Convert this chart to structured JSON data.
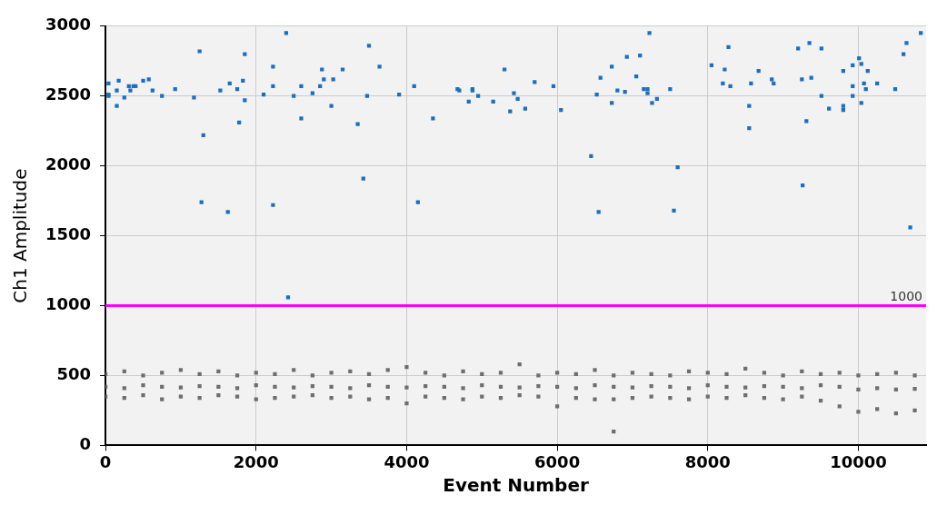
{
  "chart_data": {
    "type": "scatter",
    "xlabel": "Event Number",
    "ylabel": "Ch1 Amplitude",
    "xlim": [
      0,
      10900
    ],
    "xticks": [
      0,
      2000,
      4000,
      6000,
      8000,
      10000
    ],
    "ylim": [
      0,
      3000
    ],
    "yticks": [
      0,
      500,
      1000,
      1500,
      2000,
      2500,
      3000
    ],
    "grid": true,
    "legend": false,
    "marker": "square",
    "ref_lines": [
      {
        "axis": "y",
        "value": 1000,
        "label": "1000",
        "color": "#ff00ff"
      }
    ],
    "series": [
      {
        "color": "#1a6fc0",
        "x": [
          40,
          175,
          40,
          40,
          150,
          150,
          250,
          310,
          330,
          370,
          400,
          500,
          575,
          625,
          750,
          925,
          1175,
          1250,
          1300,
          1275,
          1525,
          1650,
          1750,
          1825,
          1850,
          1850,
          1775,
          1625,
          2225,
          2225,
          2225,
          2100,
          2400,
          2425,
          2500,
          2600,
          2600,
          2750,
          2850,
          2875,
          2900,
          3025,
          3000,
          3150,
          3350,
          3425,
          3475,
          3500,
          3640,
          3900,
          4100,
          4350,
          4150,
          4675,
          4700,
          4825,
          4875,
          4875,
          4950,
          5150,
          5300,
          5375,
          5425,
          5475,
          5575,
          5700,
          5950,
          6050,
          6450,
          6550,
          6525,
          6575,
          6725,
          6725,
          6800,
          6900,
          6925,
          7100,
          7050,
          7150,
          7200,
          7200,
          7225,
          7260,
          7325,
          7500,
          7600,
          7550,
          8050,
          8275,
          8225,
          8200,
          8300,
          8550,
          8550,
          8575,
          8675,
          8850,
          8875,
          9200,
          9350,
          9510,
          9250,
          9375,
          9310,
          9260,
          9510,
          9610,
          9800,
          9800,
          9800,
          9925,
          9925,
          9925,
          10010,
          10040,
          10125,
          10075,
          10100,
          10040,
          10250,
          10490,
          10640,
          10600,
          10830,
          10690
        ],
        "values": [
          2590,
          2610,
          2510,
          2500,
          2540,
          2430,
          2490,
          2570,
          2540,
          2570,
          2570,
          2610,
          2620,
          2540,
          2500,
          2550,
          2490,
          2820,
          2220,
          1740,
          2540,
          2590,
          2550,
          2610,
          2800,
          2470,
          2310,
          1670,
          1720,
          2710,
          2570,
          2510,
          2950,
          1060,
          2500,
          2570,
          2340,
          2520,
          2570,
          2690,
          2620,
          2620,
          2430,
          2690,
          2300,
          1910,
          2500,
          2860,
          2710,
          2510,
          2570,
          2340,
          1740,
          2550,
          2540,
          2460,
          2550,
          2540,
          2500,
          2460,
          2690,
          2390,
          2520,
          2480,
          2410,
          2600,
          2570,
          2400,
          2070,
          1670,
          2510,
          2630,
          2710,
          2450,
          2540,
          2530,
          2780,
          2790,
          2640,
          2550,
          2550,
          2520,
          2950,
          2450,
          2480,
          2550,
          1990,
          1680,
          2720,
          2850,
          2690,
          2590,
          2570,
          2430,
          2270,
          2590,
          2680,
          2620,
          2590,
          2840,
          2880,
          2840,
          2620,
          2630,
          2320,
          1860,
          2500,
          2410,
          2680,
          2430,
          2400,
          2720,
          2570,
          2500,
          2770,
          2730,
          2680,
          2590,
          2550,
          2450,
          2590,
          2550,
          2880,
          2800,
          2950,
          1560
        ]
      },
      {
        "color": "#6e6e6e",
        "x": [
          0,
          250,
          500,
          750,
          1000,
          1250,
          1500,
          1750,
          2000,
          2250,
          2500,
          2750,
          3000,
          3250,
          3500,
          3750,
          4000,
          4250,
          4500,
          4750,
          5000,
          5250,
          5500,
          5750,
          6000,
          6250,
          6500,
          6750,
          7000,
          7250,
          7500,
          7750,
          8000,
          8250,
          8500,
          8750,
          9000,
          9250,
          9500,
          9750,
          10000,
          10250,
          10500,
          10750,
          0,
          250,
          500,
          750,
          1000,
          1250,
          1500,
          1750,
          2000,
          2250,
          2500,
          2750,
          3000,
          3250,
          3500,
          3750,
          4000,
          4250,
          4500,
          4750,
          5000,
          5250,
          5500,
          5750,
          6000,
          6250,
          6500,
          6750,
          7000,
          7250,
          7500,
          7750,
          8000,
          8250,
          8500,
          8750,
          9000,
          9250,
          9500,
          9750,
          10000,
          10250,
          10500,
          10750,
          0,
          250,
          500,
          750,
          1000,
          1250,
          1500,
          1750,
          2000,
          2250,
          2500,
          2750,
          3000,
          3250,
          3500,
          3750,
          4000,
          4250,
          4500,
          4750,
          5000,
          5250,
          5500,
          5750,
          6000,
          6250,
          6500,
          6750,
          7000,
          7250,
          7500,
          7750,
          8000,
          8250,
          8500,
          8750,
          9000,
          9250,
          9500,
          9750,
          10000,
          10250,
          10500,
          10750,
          6750
        ],
        "values": [
          510,
          530,
          500,
          520,
          540,
          510,
          530,
          500,
          520,
          510,
          540,
          500,
          520,
          530,
          510,
          540,
          560,
          520,
          500,
          530,
          510,
          520,
          580,
          500,
          520,
          510,
          540,
          500,
          520,
          510,
          500,
          530,
          520,
          510,
          550,
          520,
          500,
          530,
          510,
          520,
          500,
          510,
          520,
          500,
          420,
          410,
          430,
          420,
          415,
          425,
          420,
          410,
          430,
          420,
          415,
          425,
          420,
          410,
          430,
          420,
          415,
          425,
          420,
          410,
          430,
          420,
          415,
          425,
          420,
          410,
          430,
          420,
          415,
          425,
          420,
          410,
          430,
          420,
          415,
          425,
          420,
          410,
          430,
          420,
          400,
          410,
          400,
          405,
          350,
          340,
          360,
          330,
          350,
          340,
          360,
          350,
          330,
          340,
          350,
          360,
          340,
          350,
          330,
          340,
          300,
          350,
          340,
          330,
          350,
          340,
          360,
          350,
          280,
          340,
          330,
          330,
          340,
          350,
          340,
          330,
          350,
          340,
          360,
          340,
          330,
          350,
          320,
          280,
          240,
          260,
          230,
          250,
          100
        ]
      }
    ]
  }
}
